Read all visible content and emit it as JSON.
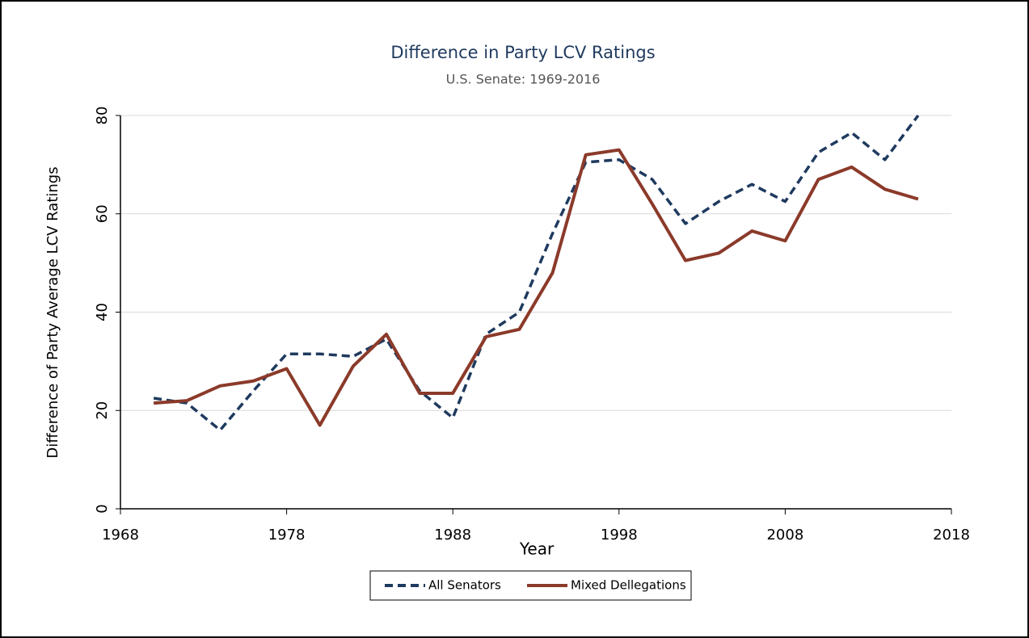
{
  "chart_data": {
    "type": "line",
    "title": "Difference in Party LCV Ratings",
    "subtitle": "U.S. Senate: 1969-2016",
    "x_label": "Year",
    "y_label": "Difference of Party Average LCV Ratings",
    "x": [
      1970,
      1972,
      1974,
      1976,
      1978,
      1980,
      1982,
      1984,
      1986,
      1988,
      1990,
      1992,
      1994,
      1996,
      1998,
      2000,
      2002,
      2004,
      2006,
      2008,
      2010,
      2012,
      2014,
      2016
    ],
    "series": [
      {
        "name": "All Senators",
        "color": "#1f3a5f",
        "dash": true,
        "values": [
          22.5,
          21.5,
          16,
          24,
          31.5,
          31.5,
          31,
          34.5,
          24,
          18.5,
          35.5,
          40,
          56,
          70.5,
          71,
          67,
          58,
          62.5,
          66,
          62.5,
          72.5,
          76.5,
          71,
          80
        ]
      },
      {
        "name": "Mixed Dellegations",
        "color": "#8b3a2a",
        "dash": false,
        "values": [
          21.5,
          22,
          25,
          26,
          28.5,
          17,
          29,
          35.5,
          23.5,
          23.5,
          35,
          36.5,
          48,
          72,
          73,
          62,
          50.5,
          52,
          56.5,
          54.5,
          67,
          69.5,
          65,
          63
        ]
      }
    ],
    "xlim": [
      1968,
      2018
    ],
    "xticks": [
      1968,
      1978,
      1988,
      1998,
      2008,
      2018
    ],
    "ylim": [
      0,
      80
    ],
    "yticks": [
      0,
      20,
      40,
      60,
      80
    ],
    "grid": true,
    "legend": "bottom"
  }
}
